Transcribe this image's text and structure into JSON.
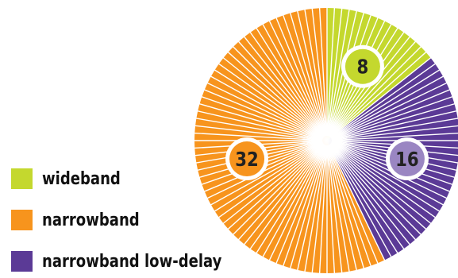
{
  "chart_data": {
    "type": "pie",
    "title": "",
    "categories": [
      "wideband",
      "narrowband low-delay",
      "narrowband"
    ],
    "values": [
      8,
      16,
      32
    ],
    "colors": {
      "wideband": "#c4d82e",
      "narrowband low-delay": "#5b3a96",
      "narrowband": "#f7941d"
    },
    "label_circle_colors": {
      "wideband": "#c4d82e",
      "narrowband low-delay": "#9a86c2",
      "narrowband": "#f7941d"
    },
    "legend_position": "bottom-left",
    "legend_order": [
      "wideband",
      "narrowband",
      "narrowband low-delay"
    ]
  },
  "legend": {
    "items": [
      {
        "label": "wideband",
        "color": "#c4d82e"
      },
      {
        "label": "narrowband",
        "color": "#f7941d"
      },
      {
        "label": "narrowband low-delay",
        "color": "#5b3a96"
      }
    ]
  }
}
